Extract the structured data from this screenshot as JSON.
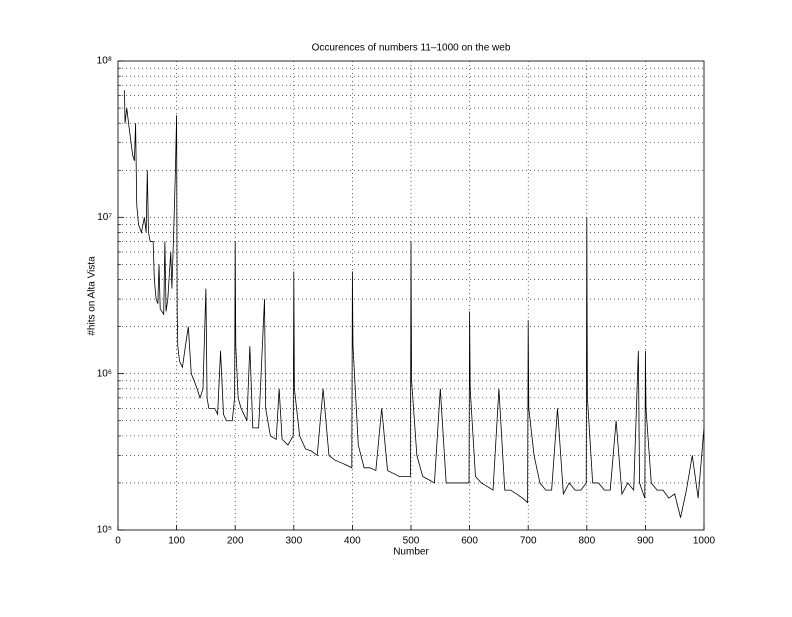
{
  "chart_data": {
    "type": "line",
    "title": "Occurences of numbers 11–1000 on the web",
    "xlabel": "Number",
    "ylabel": "#hits on Alta Vista",
    "yscale": "log",
    "grid": true,
    "xlim": [
      0,
      1000
    ],
    "xticks": [
      0,
      100,
      200,
      300,
      400,
      500,
      600,
      700,
      800,
      900,
      1000
    ],
    "ylim": [
      100000,
      100000000
    ],
    "yticks": [
      {
        "value": 100000,
        "label": "10⁵"
      },
      {
        "value": 1000000,
        "label": "10⁶"
      },
      {
        "value": 10000000,
        "label": "10⁷"
      },
      {
        "value": 100000000,
        "label": "10⁸"
      }
    ],
    "yminorticks": [
      200000,
      300000,
      400000,
      500000,
      600000,
      700000,
      800000,
      900000,
      2000000,
      3000000,
      4000000,
      5000000,
      6000000,
      7000000,
      8000000,
      9000000,
      20000000,
      30000000,
      40000000,
      50000000,
      60000000,
      70000000,
      80000000,
      90000000
    ],
    "color": "#000000",
    "x": [
      11,
      12,
      15,
      18,
      20,
      25,
      28,
      30,
      32,
      35,
      40,
      45,
      48,
      50,
      52,
      55,
      60,
      62,
      65,
      68,
      70,
      72,
      75,
      78,
      80,
      82,
      85,
      90,
      92,
      95,
      98,
      100,
      101,
      102,
      105,
      110,
      115,
      120,
      125,
      130,
      135,
      140,
      145,
      150,
      152,
      155,
      160,
      165,
      170,
      175,
      180,
      185,
      190,
      195,
      199,
      200,
      201,
      205,
      210,
      220,
      225,
      230,
      240,
      250,
      252,
      260,
      270,
      275,
      280,
      290,
      299,
      300,
      301,
      310,
      320,
      330,
      340,
      350,
      360,
      370,
      380,
      390,
      399,
      400,
      401,
      410,
      420,
      430,
      440,
      450,
      460,
      470,
      480,
      490,
      499,
      500,
      501,
      510,
      520,
      530,
      540,
      550,
      560,
      570,
      580,
      590,
      599,
      600,
      601,
      610,
      620,
      630,
      640,
      650,
      660,
      670,
      680,
      690,
      699,
      700,
      701,
      710,
      720,
      730,
      740,
      750,
      760,
      770,
      780,
      790,
      799,
      800,
      801,
      810,
      820,
      830,
      840,
      850,
      860,
      870,
      880,
      888,
      890,
      899,
      900,
      901,
      910,
      920,
      930,
      940,
      950,
      960,
      970,
      980,
      990,
      1000
    ],
    "values": [
      65000000,
      40000000,
      50000000,
      40000000,
      35000000,
      25000000,
      23000000,
      40000000,
      12000000,
      9000000,
      8000000,
      10000000,
      8000000,
      20000000,
      8000000,
      7000000,
      7000000,
      4000000,
      3000000,
      2800000,
      5000000,
      2600000,
      2500000,
      2400000,
      7000000,
      2500000,
      3000000,
      6000000,
      3500000,
      8000000,
      20000000,
      45000000,
      2500000,
      1500000,
      1200000,
      1100000,
      1500000,
      2000000,
      1000000,
      900000,
      800000,
      700000,
      800000,
      3500000,
      700000,
      600000,
      600000,
      600000,
      550000,
      1400000,
      550000,
      500000,
      500000,
      500000,
      700000,
      7000000,
      1500000,
      700000,
      600000,
      500000,
      1500000,
      450000,
      450000,
      3000000,
      600000,
      400000,
      380000,
      800000,
      380000,
      350000,
      400000,
      4500000,
      800000,
      400000,
      330000,
      320000,
      300000,
      800000,
      300000,
      280000,
      270000,
      260000,
      250000,
      4500000,
      1500000,
      350000,
      250000,
      250000,
      240000,
      600000,
      240000,
      230000,
      220000,
      220000,
      220000,
      7000000,
      900000,
      300000,
      220000,
      210000,
      200000,
      800000,
      200000,
      200000,
      200000,
      200000,
      200000,
      2500000,
      800000,
      220000,
      200000,
      190000,
      180000,
      800000,
      180000,
      180000,
      170000,
      160000,
      150000,
      2200000,
      600000,
      300000,
      200000,
      180000,
      180000,
      600000,
      170000,
      200000,
      180000,
      180000,
      200000,
      10000000,
      700000,
      200000,
      200000,
      180000,
      180000,
      500000,
      170000,
      200000,
      180000,
      1400000,
      200000,
      160000,
      1400000,
      600000,
      200000,
      180000,
      180000,
      160000,
      170000,
      120000,
      180000,
      300000,
      160000,
      450000
    ]
  }
}
